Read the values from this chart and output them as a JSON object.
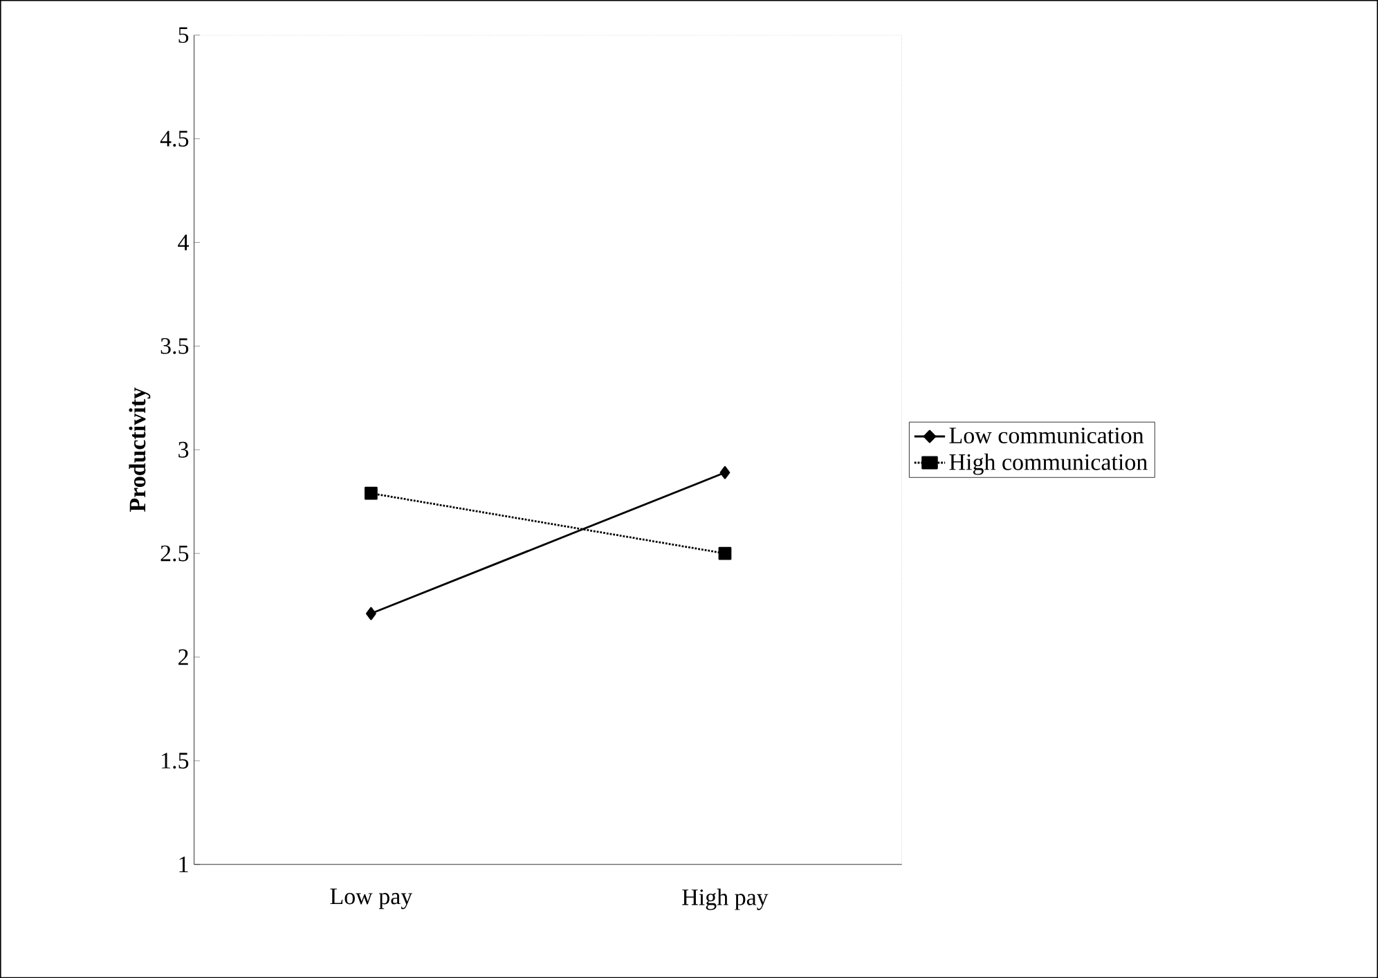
{
  "chart_data": {
    "type": "line",
    "ylabel": "Productivity",
    "categories": [
      "Low pay",
      "High pay"
    ],
    "series": [
      {
        "name": "Low communication",
        "color": "#000000",
        "values": [
          2.21,
          2.89
        ],
        "marker": "diamond",
        "line_style": "solid"
      },
      {
        "name": "High communication",
        "color": "#000000",
        "values": [
          2.79,
          2.5
        ],
        "marker": "square",
        "line_style": "dotted"
      }
    ],
    "ylim": [
      1,
      5
    ],
    "yticks": [
      1,
      1.5,
      2,
      2.5,
      3,
      3.5,
      4,
      4.5,
      5
    ],
    "legend": "right",
    "grid": false
  }
}
